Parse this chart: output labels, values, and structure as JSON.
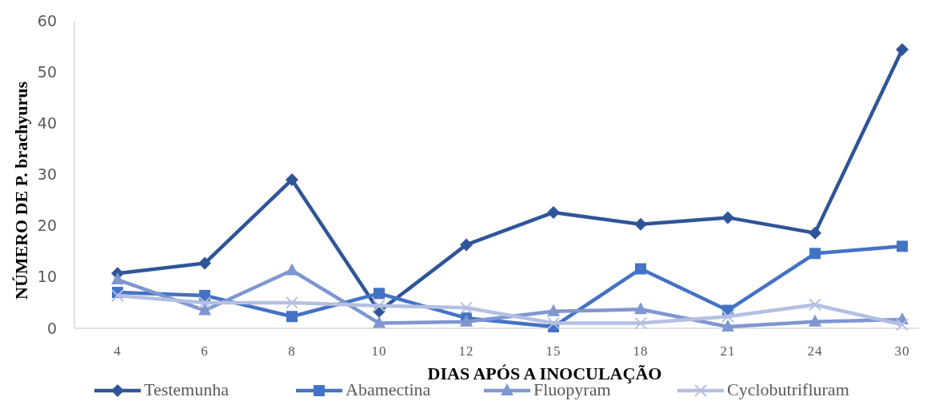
{
  "chart_data": {
    "type": "line",
    "xlabel": "DIAS APÓS A INOCULAÇÃO",
    "ylabel": "NÚMERO DE P. brachyurus",
    "categories": [
      "4",
      "6",
      "8",
      "10",
      "12",
      "15",
      "18",
      "21",
      "24",
      "30"
    ],
    "series": [
      {
        "name": "Testemunha",
        "color": "#2f5597",
        "marker": "diamond",
        "values": [
          10.7,
          12.7,
          29,
          3.3,
          16.3,
          22.6,
          20.3,
          21.6,
          18.6,
          54.4
        ]
      },
      {
        "name": "Abamectina",
        "color": "#4472c4",
        "marker": "square",
        "values": [
          7,
          6.4,
          2.3,
          6.8,
          2,
          0.3,
          11.6,
          3.5,
          14.6,
          16
        ]
      },
      {
        "name": "Fluopyram",
        "color": "#7f96d1",
        "marker": "triangle",
        "values": [
          9.5,
          3.5,
          11.3,
          1,
          1.3,
          3.3,
          3.7,
          0.3,
          1.3,
          1.7
        ]
      },
      {
        "name": "Cyclobutrifluram",
        "color": "#b4bfe2",
        "marker": "cross",
        "values": [
          6.4,
          5,
          5,
          4.4,
          4,
          1,
          1,
          2.3,
          4.6,
          0.7
        ]
      }
    ],
    "ylim": [
      0,
      60
    ],
    "yticks": [
      0,
      10,
      20,
      30,
      40,
      50,
      60
    ],
    "grid": false,
    "legend": "bottom"
  }
}
